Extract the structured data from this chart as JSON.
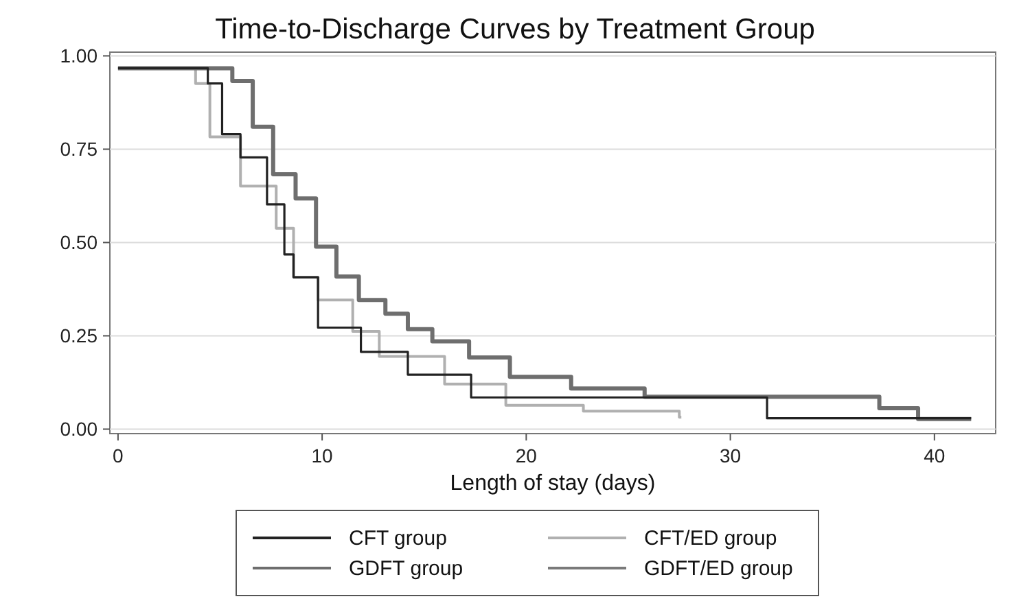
{
  "chart_data": {
    "type": "step",
    "title": "Time-to-Discharge Curves by Treatment Group",
    "xlabel": "Length of stay (days)",
    "xlim": [
      -0.4,
      43
    ],
    "xticks": [
      0,
      10,
      20,
      30,
      40
    ],
    "ylim": [
      -0.012,
      1.01
    ],
    "yticks": [
      {
        "value": 0,
        "label": "0.00"
      },
      {
        "value": 0.25,
        "label": "0.25"
      },
      {
        "value": 0.5,
        "label": "0.50"
      },
      {
        "value": 0.75,
        "label": "0.75"
      },
      {
        "value": 1,
        "label": "1.00"
      }
    ],
    "grid": "y",
    "legend": "bottom",
    "line_style": "solid",
    "marker": "none",
    "series": [
      {
        "name": "CFT group",
        "color": "#222222",
        "x": [
          0,
          4.4,
          5.1,
          6.0,
          7.3,
          8.15,
          8.6,
          9.8,
          11.9,
          14.2,
          17.3,
          31.8,
          41.8
        ],
        "values": [
          0.967,
          0.926,
          0.79,
          0.728,
          0.602,
          0.468,
          0.407,
          0.272,
          0.207,
          0.146,
          0.085,
          0.029,
          0.029
        ]
      },
      {
        "name": "GDFT group",
        "color": "#6e6e6e",
        "x": [
          0,
          5.6,
          6.6,
          7.6,
          8.7,
          9.7,
          10.7,
          11.8,
          13.1,
          14.2,
          15.4,
          17.2,
          19.2,
          22.2,
          25.8,
          37.3,
          39.2,
          41.8
        ],
        "values": [
          0.967,
          0.933,
          0.81,
          0.683,
          0.618,
          0.489,
          0.409,
          0.346,
          0.309,
          0.268,
          0.235,
          0.192,
          0.14,
          0.109,
          0.087,
          0.056,
          0.027,
          0.027
        ]
      },
      {
        "name": "CFT/ED group",
        "color": "#b0b0b0",
        "x": [
          0,
          3.8,
          4.5,
          6.0,
          7.75,
          8.6,
          9.8,
          11.5,
          12.8,
          16.0,
          19.0,
          22.8,
          27.5,
          27.6
        ],
        "values": [
          0.967,
          0.926,
          0.783,
          0.651,
          0.538,
          0.407,
          0.346,
          0.262,
          0.195,
          0.121,
          0.064,
          0.048,
          0.032,
          0.032
        ]
      },
      {
        "name": "GDFT/ED group",
        "color": "#7a7a7a"
      }
    ]
  }
}
